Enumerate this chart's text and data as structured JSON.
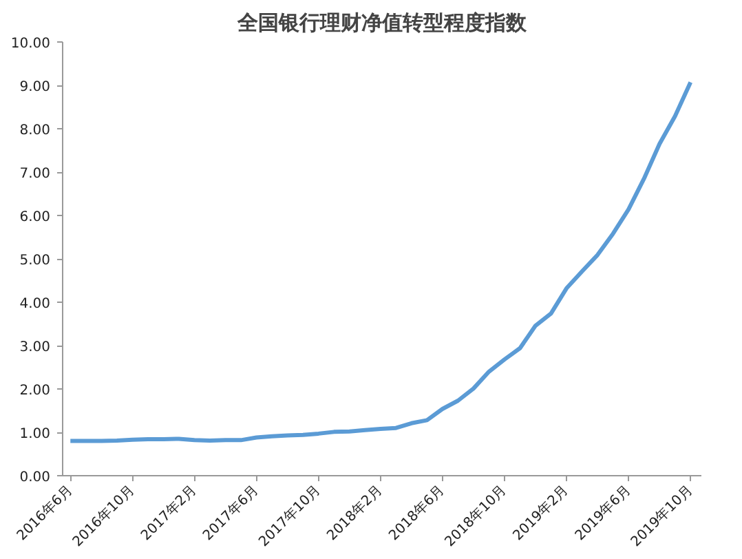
{
  "chart_data": {
    "type": "line",
    "title": "全国银行理财净值转型程度指数",
    "categories": [
      "2016年6月",
      null,
      null,
      null,
      "2016年10月",
      null,
      null,
      null,
      "2017年2月",
      null,
      null,
      null,
      "2017年6月",
      null,
      null,
      null,
      "2017年10月",
      null,
      null,
      null,
      "2018年2月",
      null,
      null,
      null,
      "2018年6月",
      null,
      null,
      null,
      "2018年10月",
      null,
      null,
      null,
      "2019年2月",
      null,
      null,
      null,
      "2019年6月",
      null,
      null,
      null,
      "2019年10月"
    ],
    "series": [
      {
        "color": "#5b9bd5",
        "values": [
          0.8,
          0.8,
          0.8,
          0.81,
          0.83,
          0.84,
          0.84,
          0.85,
          0.82,
          0.81,
          0.82,
          0.82,
          0.88,
          0.91,
          0.93,
          0.94,
          0.97,
          1.01,
          1.02,
          1.05,
          1.08,
          1.1,
          1.21,
          1.28,
          1.54,
          1.73,
          2.01,
          2.4,
          2.68,
          2.94,
          3.46,
          3.74,
          4.32,
          4.71,
          5.09,
          5.58,
          6.14,
          6.85,
          7.65,
          8.29,
          9.07
        ]
      }
    ],
    "ylim": [
      0,
      10
    ],
    "yticks": [
      {
        "value": 0,
        "label": "0.00"
      },
      {
        "value": 1,
        "label": "1.00"
      },
      {
        "value": 2,
        "label": "2.00"
      },
      {
        "value": 3,
        "label": "3.00"
      },
      {
        "value": 4,
        "label": "4.00"
      },
      {
        "value": 5,
        "label": "5.00"
      },
      {
        "value": 6,
        "label": "6.00"
      },
      {
        "value": 7,
        "label": "7.00"
      },
      {
        "value": 8,
        "label": "8.00"
      },
      {
        "value": 9,
        "label": "9.00"
      },
      {
        "value": 10,
        "label": "10.00"
      }
    ],
    "grid": false,
    "marker": "none",
    "line_style": "solid"
  }
}
